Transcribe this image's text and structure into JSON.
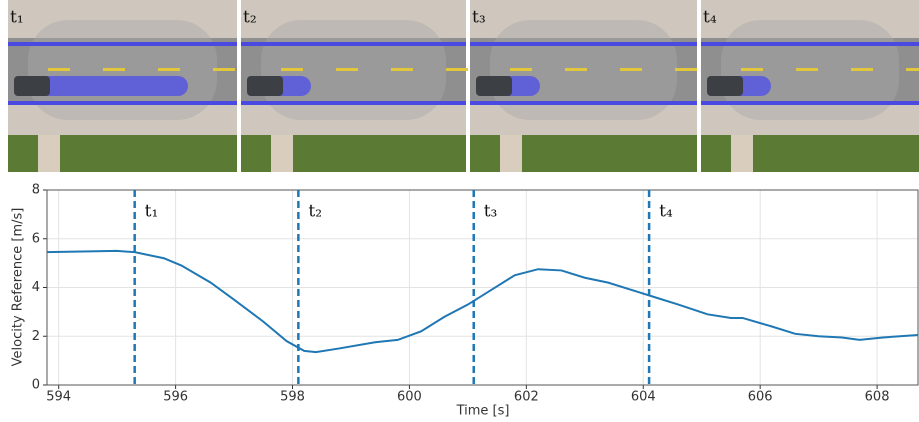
{
  "snapshots": [
    {
      "label": "t₁"
    },
    {
      "label": "t₂"
    },
    {
      "label": "t₃"
    },
    {
      "label": "t₄"
    }
  ],
  "chart_data": {
    "type": "line",
    "xlabel": "Time [s]",
    "ylabel": "Velocity Reference [m/s]",
    "x": [
      593.8,
      595.0,
      595.3,
      595.8,
      596.1,
      596.6,
      597.0,
      597.5,
      597.9,
      598.2,
      598.4,
      598.8,
      599.4,
      599.8,
      600.2,
      600.6,
      601.0,
      601.4,
      601.8,
      602.2,
      602.6,
      603.0,
      603.4,
      603.8,
      604.2,
      604.6,
      605.1,
      605.5,
      605.7,
      606.2,
      606.6,
      607.0,
      607.4,
      607.7,
      608.1,
      608.7
    ],
    "values": [
      5.45,
      5.5,
      5.45,
      5.2,
      4.9,
      4.2,
      3.5,
      2.6,
      1.8,
      1.4,
      1.35,
      1.5,
      1.75,
      1.85,
      2.2,
      2.8,
      3.3,
      3.9,
      4.5,
      4.75,
      4.7,
      4.4,
      4.2,
      3.9,
      3.6,
      3.3,
      2.9,
      2.75,
      2.75,
      2.4,
      2.1,
      2.0,
      1.95,
      1.85,
      1.95,
      2.05
    ],
    "color": "#1f77b4",
    "events": [
      {
        "x": 595.3,
        "label": "t₁"
      },
      {
        "x": 598.1,
        "label": "t₂"
      },
      {
        "x": 601.1,
        "label": "t₃"
      },
      {
        "x": 604.1,
        "label": "t₄"
      }
    ],
    "xlim": [
      593.8,
      608.7
    ],
    "xticks": [
      594,
      596,
      598,
      600,
      602,
      604,
      606,
      608
    ],
    "ylim": [
      0,
      8
    ],
    "yticks": [
      0,
      2,
      4,
      6,
      8
    ],
    "grid": true
  }
}
